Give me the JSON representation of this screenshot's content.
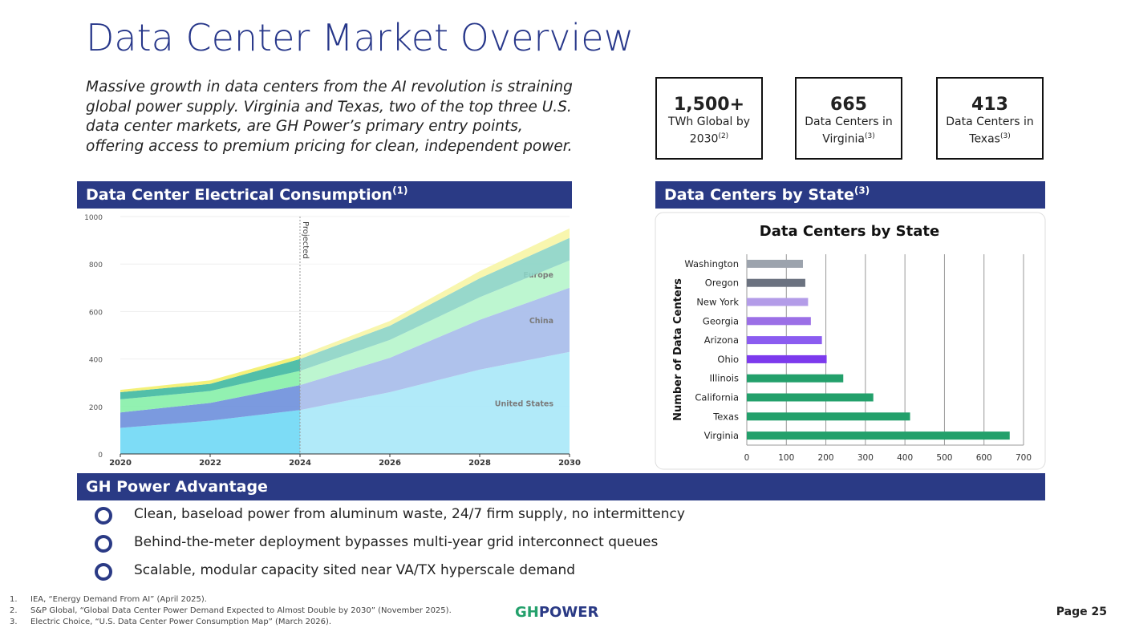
{
  "header": {
    "title": "Data Center Market Overview",
    "intro": "Massive growth in data centers from the AI revolution is straining global power supply. Virginia and Texas, two of the top three U.S. data center markets, are GH Power’s primary entry points, offering access to premium pricing for clean, independent power."
  },
  "stats": [
    {
      "value": "1,500+",
      "label": "TWh Global by 2030",
      "note": "(2)"
    },
    {
      "value": "665",
      "label": "Data Centers in Virginia",
      "note": "(3)"
    },
    {
      "value": "413",
      "label": "Data Centers in Texas",
      "note": "(3)"
    }
  ],
  "sections": [
    {
      "title": "Data Center Electrical Consumption",
      "note": "(1)"
    },
    {
      "title": "Data Centers by State",
      "note": "(3)"
    },
    {
      "title": "GH Power Advantage"
    }
  ],
  "bullets": [
    "Clean, baseload power from aluminum waste, 24/7 firm supply, no intermittency",
    "Behind-the-meter deployment bypasses multi-year grid interconnect queues",
    "Scalable, modular capacity sited near VA/TX hyperscale demand"
  ],
  "footnotes": [
    {
      "number": "1.",
      "text": "IEA, “Energy Demand From AI” (April 2025)."
    },
    {
      "number": "2.",
      "text": "S&P Global, “Global Data Center Power Demand Expected to Almost Double by 2030” (November 2025)."
    },
    {
      "number": "3.",
      "text": "Electric Choice, “U.S. Data Center Power Consumption Map” (March 2026)."
    }
  ],
  "logo": {
    "mark": "GH",
    "text": "POWER"
  },
  "page": "Page 25",
  "chart_data": [
    {
      "type": "stacked_area",
      "annotation": "Projected",
      "annotation_x": 2024,
      "x": [
        2020,
        2022,
        2024,
        2026,
        2028,
        2030
      ],
      "xlim": [
        2020,
        2030
      ],
      "xticks": [
        2020,
        2022,
        2024,
        2026,
        2028,
        2030
      ],
      "ylim": [
        0,
        1000
      ],
      "yticks": [
        0,
        200,
        400,
        600,
        800,
        1000
      ],
      "grid": true,
      "series": [
        {
          "name": "United States",
          "color": "#6fd8f5",
          "values": [
            110,
            140,
            185,
            260,
            355,
            430
          ]
        },
        {
          "name": "China",
          "color": "#6d8fdc",
          "values": [
            65,
            75,
            105,
            145,
            210,
            270
          ]
        },
        {
          "name": "Europe",
          "color": "#86f0a8",
          "values": [
            55,
            50,
            60,
            75,
            95,
            115
          ]
        },
        {
          "color": "#3fb8a0",
          "values": [
            30,
            30,
            50,
            60,
            80,
            95
          ]
        },
        {
          "color": "#f3f06a",
          "values": [
            10,
            15,
            15,
            20,
            30,
            40
          ]
        }
      ]
    },
    {
      "type": "hbar",
      "title": "Data Centers by State",
      "ylabel": "Number of Data Centers",
      "categories": [
        "Washington",
        "Oregon",
        "New York",
        "Georgia",
        "Arizona",
        "Ohio",
        "Illinois",
        "California",
        "Texas",
        "Virginia"
      ],
      "values": [
        142,
        148,
        155,
        162,
        190,
        202,
        244,
        320,
        413,
        665
      ],
      "colors": [
        "#9ca3ad",
        "#6b7280",
        "#b39ce8",
        "#9b6fe6",
        "#8b5cf0",
        "#7c3aed",
        "#23a06b",
        "#23a06b",
        "#23a06b",
        "#23a06b"
      ],
      "xlim": [
        0,
        700
      ],
      "xticks": [
        0,
        100,
        200,
        300,
        400,
        500,
        600,
        700
      ],
      "grid": true
    }
  ]
}
